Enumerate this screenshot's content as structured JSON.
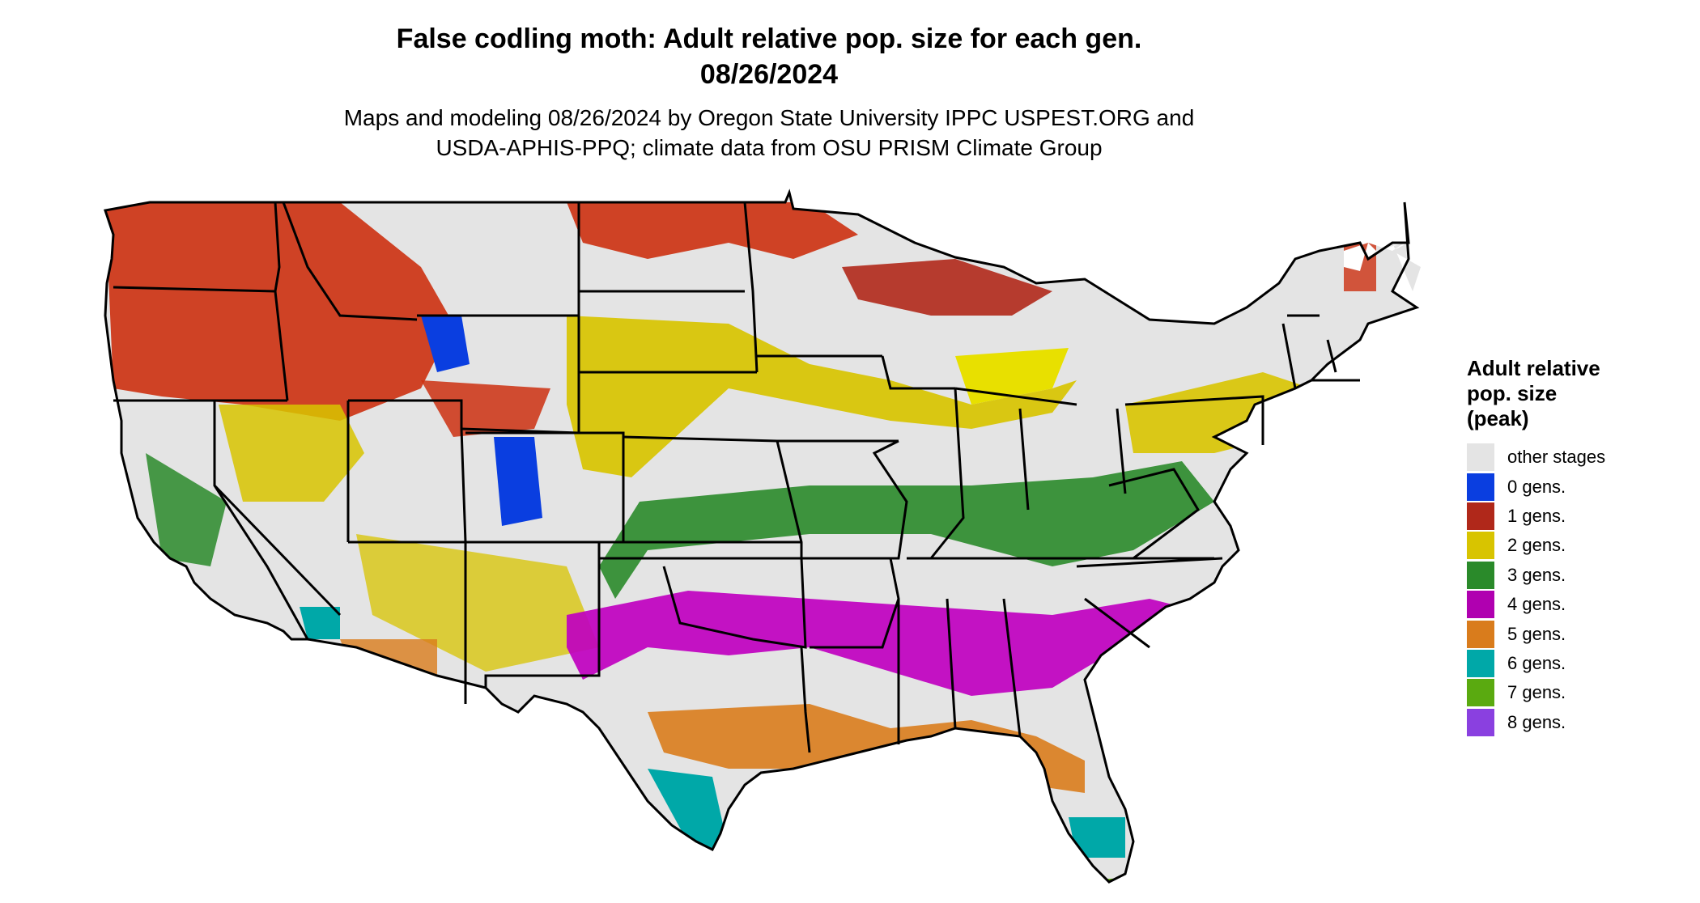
{
  "title": {
    "line1": "False codling moth: Adult relative pop. size for each gen.",
    "line2": "08/26/2024"
  },
  "subtitle": {
    "line1": "Maps and modeling 08/26/2024 by Oregon State University IPPC USPEST.ORG and",
    "line2": "USDA-APHIS-PPQ; climate data from OSU PRISM Climate Group"
  },
  "legend": {
    "title_line1": "Adult relative",
    "title_line2": "pop. size",
    "title_line3": "(peak)",
    "items": [
      {
        "label": "other stages",
        "color": "#e4e4e4"
      },
      {
        "label": "0 gens.",
        "color": "#0a3ee0"
      },
      {
        "label": "1 gens.",
        "color": "#b0281a"
      },
      {
        "label": "2 gens.",
        "color": "#d8c400"
      },
      {
        "label": "3 gens.",
        "color": "#2a8a2a"
      },
      {
        "label": "4 gens.",
        "color": "#b000b0"
      },
      {
        "label": "5 gens.",
        "color": "#d97c1c"
      },
      {
        "label": "6 gens.",
        "color": "#00a8a8"
      },
      {
        "label": "7 gens.",
        "color": "#5aaa10"
      },
      {
        "label": "8 gens.",
        "color": "#8a40e0"
      }
    ]
  },
  "map": {
    "region": "contiguous-united-states",
    "background_color": "#e4e4e4",
    "border_color": "#000000"
  }
}
